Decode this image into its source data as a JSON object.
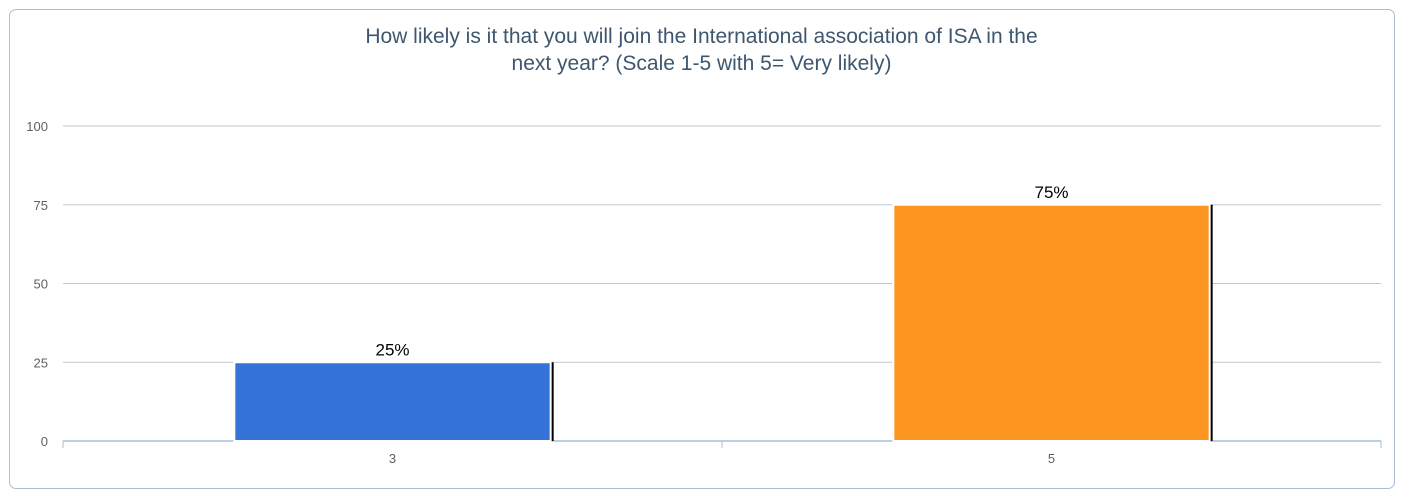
{
  "title_lines": [
    "How likely is it that you will join the International association of ISA in the",
    "next year? (Scale 1-5 with 5= Very likely)"
  ],
  "chart_data": {
    "type": "bar",
    "categories": [
      "3",
      "5"
    ],
    "values": [
      25,
      75
    ],
    "data_labels": [
      "25%",
      "75%"
    ],
    "colors": [
      "#3673d9",
      "#fd9620"
    ],
    "ylim": [
      0,
      100
    ],
    "yticks": [
      "0",
      "25",
      "50",
      "75",
      "100"
    ],
    "grid": true,
    "legend": "none"
  }
}
